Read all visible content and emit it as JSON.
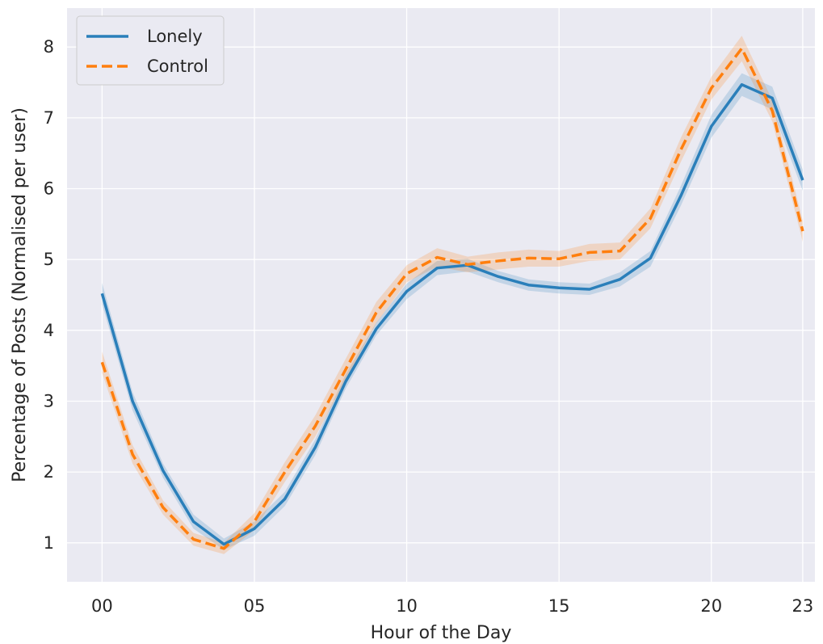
{
  "chart_data": {
    "type": "line",
    "title": "",
    "xlabel": "Hour of the Day",
    "ylabel": "Percentage of Posts (Normalised per user)",
    "x": [
      0,
      1,
      2,
      3,
      4,
      5,
      6,
      7,
      8,
      9,
      10,
      11,
      12,
      13,
      14,
      15,
      16,
      17,
      18,
      19,
      20,
      21,
      22,
      23
    ],
    "xlim": [
      -1.15,
      23.4
    ],
    "ylim": [
      0.45,
      8.55
    ],
    "x_ticks": [
      0,
      5,
      10,
      15,
      20,
      23
    ],
    "x_tick_labels": [
      "00",
      "05",
      "10",
      "15",
      "20",
      "23"
    ],
    "y_ticks": [
      1,
      2,
      3,
      4,
      5,
      6,
      7,
      8
    ],
    "y_tick_labels": [
      "1",
      "2",
      "3",
      "4",
      "5",
      "6",
      "7",
      "8"
    ],
    "grid": true,
    "background": "#eaeaf2",
    "grid_color": "#ffffff",
    "legend_position": "top-left",
    "series": [
      {
        "name": "Lonely",
        "color": "#2a7fba",
        "style": "solid",
        "values": [
          4.52,
          3.0,
          2.02,
          1.3,
          0.98,
          1.2,
          1.62,
          2.35,
          3.28,
          4.02,
          4.55,
          4.88,
          4.92,
          4.76,
          4.64,
          4.6,
          4.58,
          4.72,
          5.02,
          5.9,
          6.88,
          7.47,
          7.28,
          6.12
        ],
        "ci_lower": [
          4.37,
          2.87,
          1.92,
          1.2,
          0.9,
          1.1,
          1.52,
          2.24,
          3.18,
          3.93,
          4.44,
          4.78,
          4.83,
          4.68,
          4.56,
          4.52,
          4.5,
          4.62,
          4.9,
          5.76,
          6.72,
          7.31,
          7.12,
          5.97
        ],
        "ci_upper": [
          4.67,
          3.13,
          2.12,
          1.4,
          1.06,
          1.3,
          1.72,
          2.46,
          3.38,
          4.11,
          4.66,
          4.98,
          5.01,
          4.84,
          4.72,
          4.68,
          4.66,
          4.82,
          5.12,
          6.04,
          7.04,
          7.63,
          7.44,
          6.27
        ]
      },
      {
        "name": "Control",
        "color": "#ff7f0e",
        "style": "dashed",
        "values": [
          3.55,
          2.25,
          1.5,
          1.05,
          0.92,
          1.3,
          2.0,
          2.65,
          3.45,
          4.25,
          4.8,
          5.03,
          4.93,
          4.98,
          5.02,
          5.01,
          5.1,
          5.12,
          5.58,
          6.55,
          7.42,
          7.98,
          7.1,
          5.4
        ],
        "ci_lower": [
          3.4,
          2.12,
          1.4,
          0.96,
          0.84,
          1.18,
          1.86,
          2.5,
          3.3,
          4.1,
          4.68,
          4.9,
          4.82,
          4.86,
          4.9,
          4.9,
          4.98,
          5.0,
          5.44,
          6.38,
          7.26,
          7.8,
          6.95,
          5.25
        ],
        "ci_upper": [
          3.7,
          2.38,
          1.6,
          1.14,
          1.0,
          1.42,
          2.14,
          2.8,
          3.6,
          4.4,
          4.92,
          5.16,
          5.04,
          5.1,
          5.14,
          5.12,
          5.22,
          5.24,
          5.72,
          6.72,
          7.58,
          8.16,
          7.25,
          5.55
        ]
      }
    ]
  }
}
